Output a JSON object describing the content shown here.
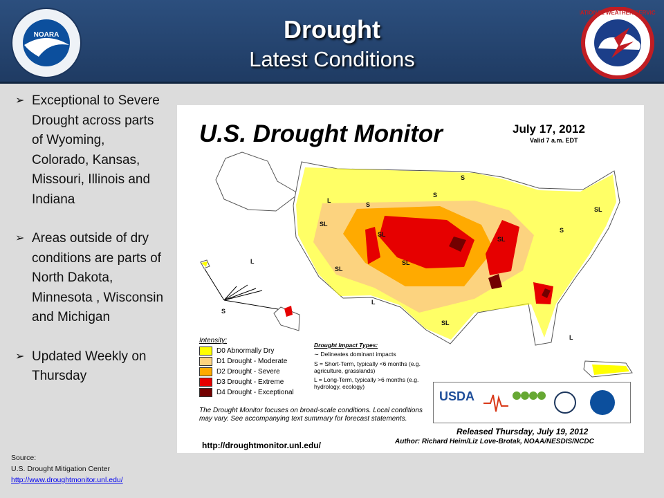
{
  "header": {
    "title": "Drought",
    "subtitle": "Latest Conditions"
  },
  "logos": {
    "noaa": "NOARA",
    "nws": "NATIONAL WEATHER SERVICE"
  },
  "bullets": [
    {
      "text": "Exceptional to Severe Drought across parts of Wyoming, Colorado, Kansas, Missouri, Illinois and Indiana"
    },
    {
      "text": "Areas outside of dry conditions are parts of North Dakota, Minnesota , Wisconsin and Michigan"
    },
    {
      "text": "Updated Weekly on Thursday"
    }
  ],
  "source": {
    "label": "Source:",
    "org": "U.S. Drought Mitigation Center",
    "url": "http://www.droughtmonitor.unl.edu/"
  },
  "monitor": {
    "title": "U.S. Drought Monitor",
    "date": "July 17, 2012",
    "valid": "Valid 7 a.m. EDT",
    "intensity_label": "Intensity:",
    "legend": [
      {
        "label": "D0 Abnormally Dry",
        "color": "#ffff00"
      },
      {
        "label": "D1 Drought - Moderate",
        "color": "#fcd37f"
      },
      {
        "label": "D2 Drought - Severe",
        "color": "#ffaa00"
      },
      {
        "label": "D3 Drought - Extreme",
        "color": "#e60000"
      },
      {
        "label": "D4 Drought - Exceptional",
        "color": "#730000"
      }
    ],
    "impact_label": "Drought Impact Types:",
    "impact_lines": [
      "Delineates dominant impacts",
      "S = Short-Term, typically <6 months (e.g. agriculture, grasslands)",
      "L = Long-Term, typically >6 months (e.g. hydrology, ecology)"
    ],
    "disclaimer": "The Drought Monitor focuses on broad-scale conditions. Local conditions may vary. See accompanying text summary for forecast statements.",
    "url": "http://droughtmonitor.unl.edu/",
    "released": "Released Thursday, July 19, 2012",
    "author": "Author: Richard Heim/Liz Love-Brotak, NOAA/NESDIS/NCDC",
    "agency_usda": "USDA",
    "map_labels": [
      "SL",
      "SL",
      "SL",
      "SL",
      "SL",
      "SL",
      "S",
      "S",
      "S",
      "L",
      "L",
      "L",
      "S",
      "SL",
      "L",
      "S"
    ]
  }
}
